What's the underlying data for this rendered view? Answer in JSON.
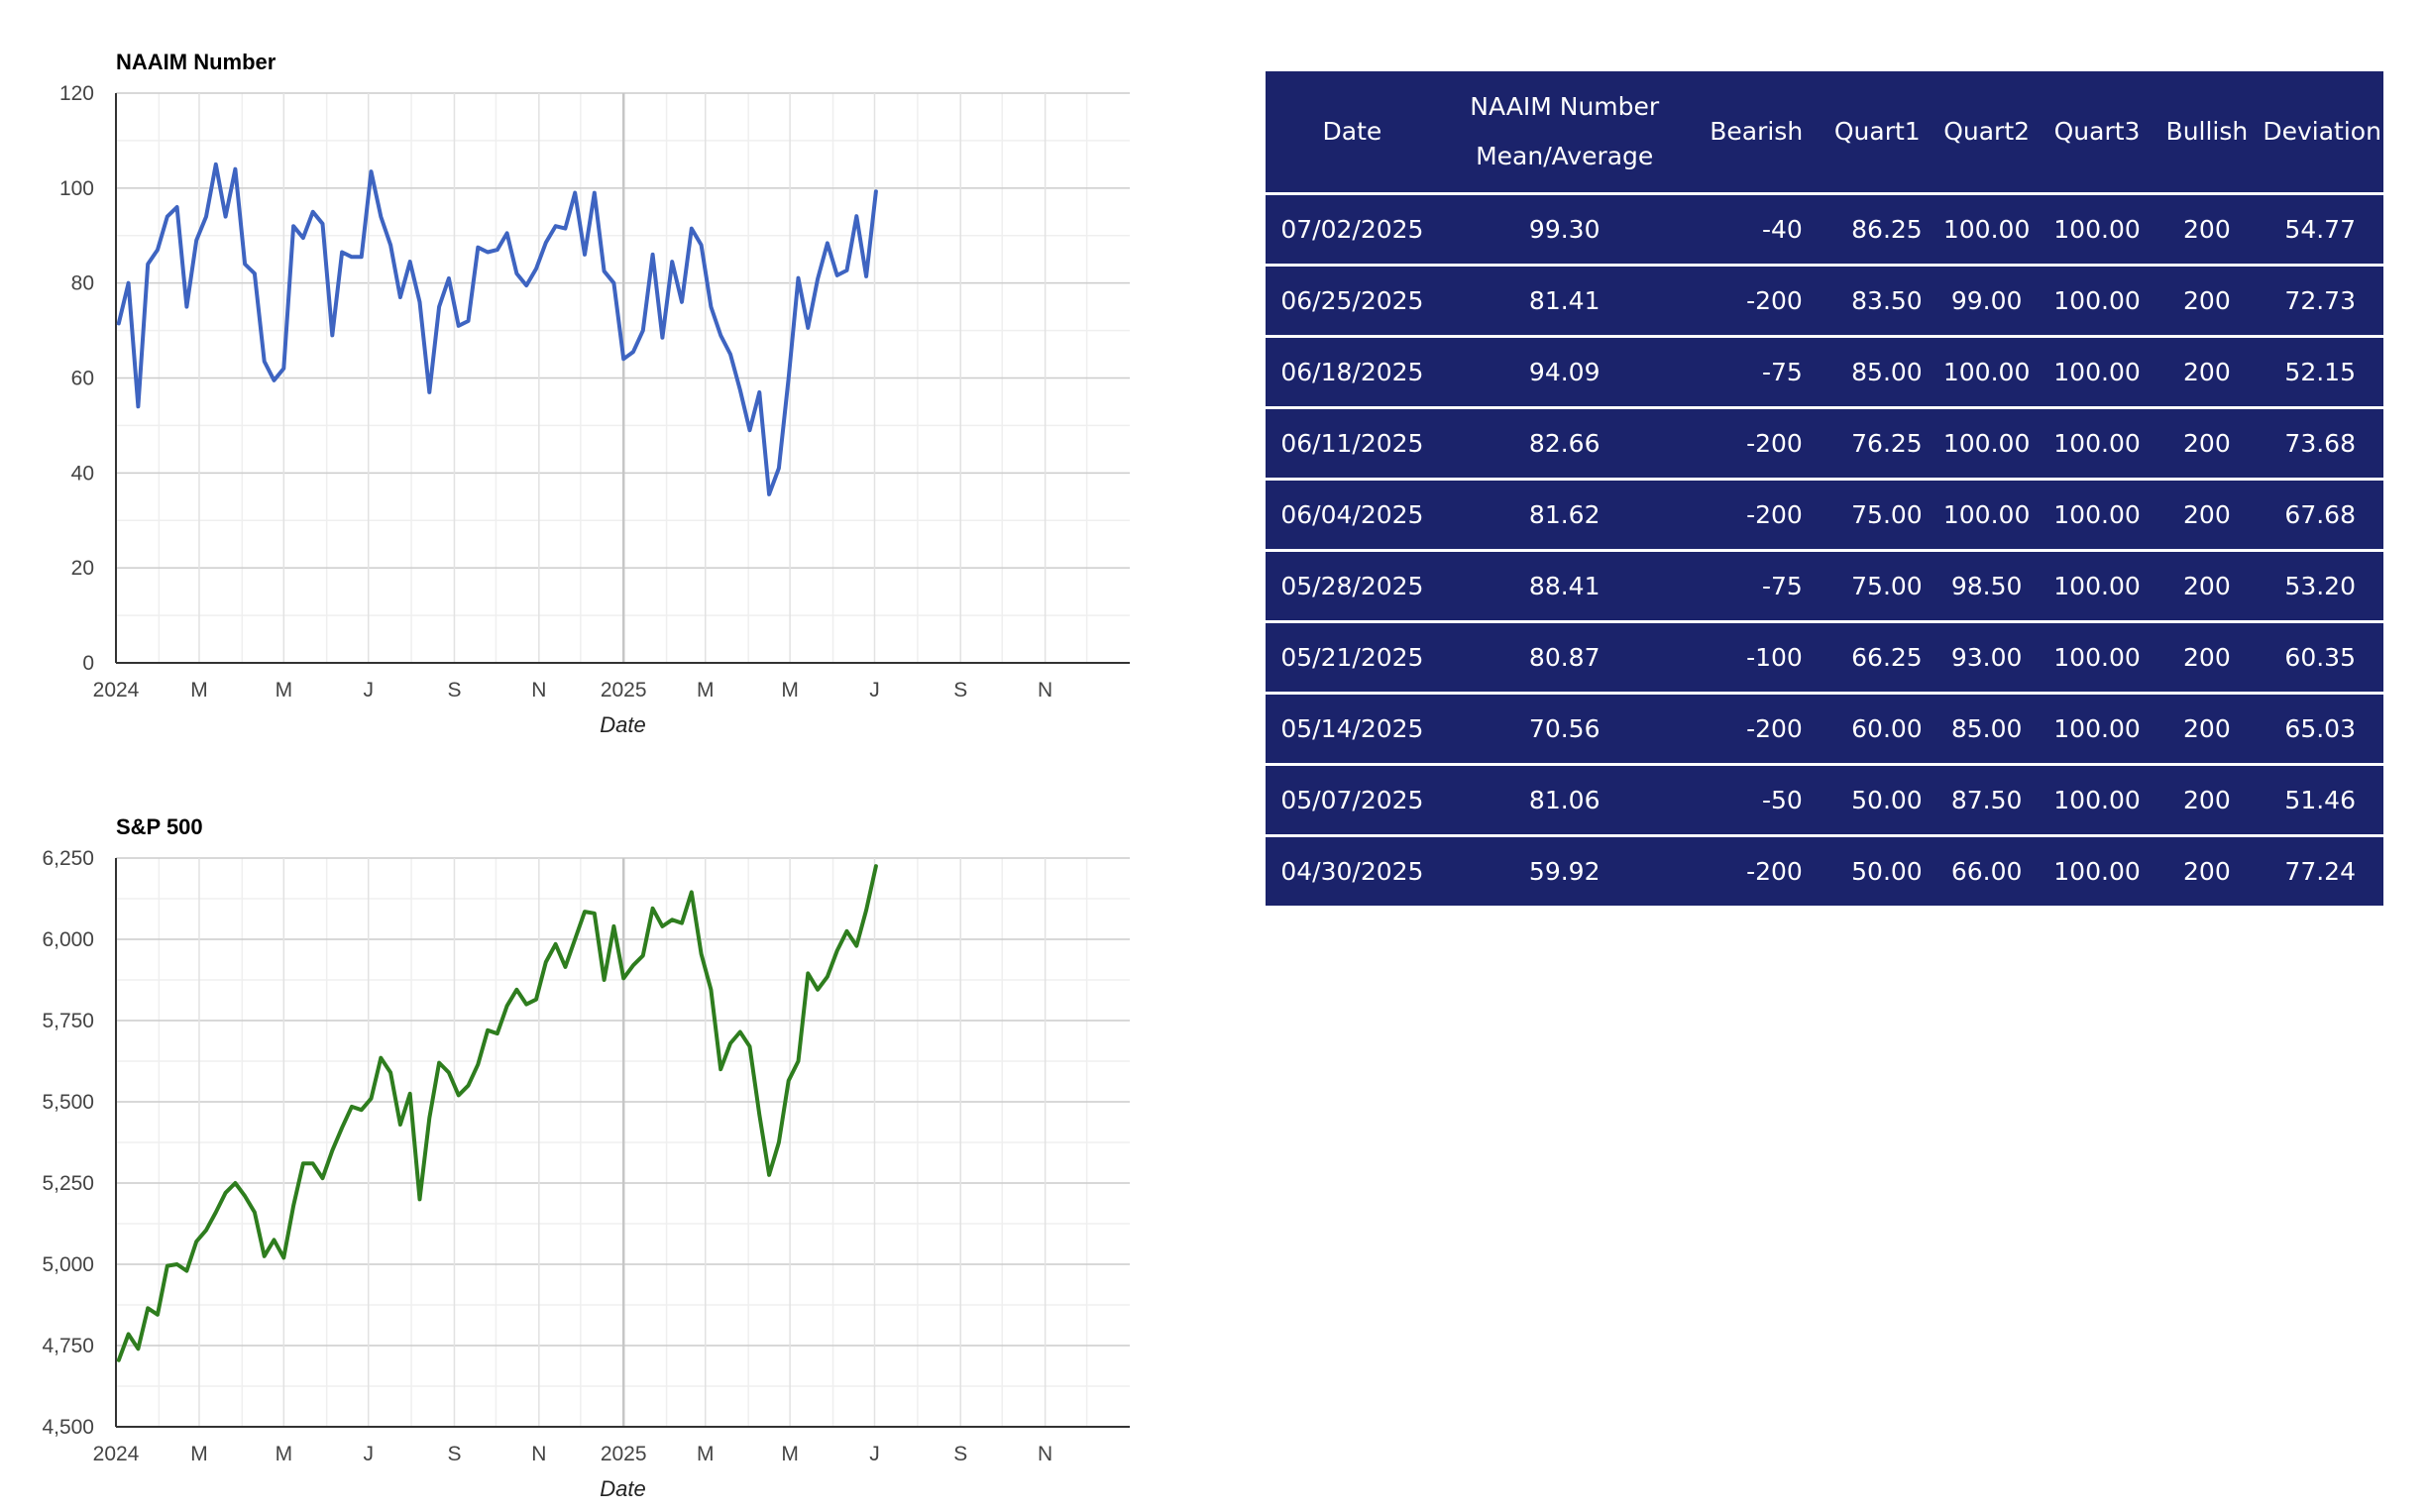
{
  "chart_data": [
    {
      "type": "line",
      "title": "NAAIM Number",
      "xlabel": "Date",
      "ylabel": "",
      "ylim": [
        0,
        120
      ],
      "yticks": [
        0,
        20,
        40,
        60,
        80,
        100,
        120
      ],
      "xlim": [
        "2024-01-01",
        "2026-01-01"
      ],
      "xticks": [
        {
          "date": "2024-01-01",
          "label": "2024"
        },
        {
          "date": "2024-03-01",
          "label": "M"
        },
        {
          "date": "2024-05-01",
          "label": "M"
        },
        {
          "date": "2024-07-01",
          "label": "J"
        },
        {
          "date": "2024-09-01",
          "label": "S"
        },
        {
          "date": "2024-11-01",
          "label": "N"
        },
        {
          "date": "2025-01-01",
          "label": "2025"
        },
        {
          "date": "2025-03-01",
          "label": "M"
        },
        {
          "date": "2025-05-01",
          "label": "M"
        },
        {
          "date": "2025-07-01",
          "label": "J"
        },
        {
          "date": "2025-09-01",
          "label": "S"
        },
        {
          "date": "2025-11-01",
          "label": "N"
        }
      ],
      "grid": true,
      "series": [
        {
          "color": "#3e64c1",
          "x": [
            "2024-01-03",
            "2024-01-10",
            "2024-01-17",
            "2024-01-24",
            "2024-01-31",
            "2024-02-07",
            "2024-02-14",
            "2024-02-21",
            "2024-02-28",
            "2024-03-06",
            "2024-03-13",
            "2024-03-20",
            "2024-03-27",
            "2024-04-03",
            "2024-04-10",
            "2024-04-17",
            "2024-04-24",
            "2024-05-01",
            "2024-05-08",
            "2024-05-15",
            "2024-05-22",
            "2024-05-29",
            "2024-06-05",
            "2024-06-12",
            "2024-06-19",
            "2024-06-26",
            "2024-07-03",
            "2024-07-10",
            "2024-07-17",
            "2024-07-24",
            "2024-07-31",
            "2024-08-07",
            "2024-08-14",
            "2024-08-21",
            "2024-08-28",
            "2024-09-04",
            "2024-09-11",
            "2024-09-18",
            "2024-09-25",
            "2024-10-02",
            "2024-10-09",
            "2024-10-16",
            "2024-10-23",
            "2024-10-30",
            "2024-11-06",
            "2024-11-13",
            "2024-11-20",
            "2024-11-27",
            "2024-12-04",
            "2024-12-11",
            "2024-12-18",
            "2024-12-25",
            "2025-01-01",
            "2025-01-08",
            "2025-01-15",
            "2025-01-22",
            "2025-01-29",
            "2025-02-05",
            "2025-02-12",
            "2025-02-19",
            "2025-02-26",
            "2025-03-05",
            "2025-03-12",
            "2025-03-19",
            "2025-03-26",
            "2025-04-02",
            "2025-04-09",
            "2025-04-16",
            "2025-04-23",
            "2025-04-30",
            "2025-05-07",
            "2025-05-14",
            "2025-05-21",
            "2025-05-28",
            "2025-06-04",
            "2025-06-11",
            "2025-06-18",
            "2025-06-25",
            "2025-07-02"
          ],
          "values": [
            71.5,
            80,
            54,
            84,
            87,
            94,
            96,
            75,
            89,
            94,
            105,
            94,
            104,
            84,
            82,
            63.5,
            59.5,
            62,
            92,
            89.5,
            95,
            92.5,
            69,
            86.5,
            85.5,
            85.5,
            103.5,
            94,
            88,
            77,
            84.5,
            76,
            57,
            75,
            81,
            71,
            72,
            87.5,
            86.5,
            87,
            90.5,
            82,
            79.5,
            83,
            88.5,
            92,
            91.5,
            99,
            86,
            99,
            82.5,
            80,
            64,
            65.5,
            70,
            86,
            68.5,
            84.5,
            76,
            91.5,
            88,
            75,
            69,
            65,
            57.5,
            49,
            57,
            35.5,
            41,
            59.92,
            81.06,
            70.56,
            80.87,
            88.41,
            81.62,
            82.66,
            94.09,
            81.41,
            99.3
          ]
        }
      ]
    },
    {
      "type": "line",
      "title": "S&P 500",
      "xlabel": "Date",
      "ylabel": "",
      "ylim": [
        4500,
        6250
      ],
      "yticks": [
        4500,
        4750,
        5000,
        5250,
        5500,
        5750,
        6000,
        6250
      ],
      "ytick_labels": [
        "4,500",
        "4,750",
        "5,000",
        "5,250",
        "5,500",
        "5,750",
        "6,000",
        "6,250"
      ],
      "xlim": [
        "2024-01-01",
        "2026-01-01"
      ],
      "xticks": [
        {
          "date": "2024-01-01",
          "label": "2024"
        },
        {
          "date": "2024-03-01",
          "label": "M"
        },
        {
          "date": "2024-05-01",
          "label": "M"
        },
        {
          "date": "2024-07-01",
          "label": "J"
        },
        {
          "date": "2024-09-01",
          "label": "S"
        },
        {
          "date": "2024-11-01",
          "label": "N"
        },
        {
          "date": "2025-01-01",
          "label": "2025"
        },
        {
          "date": "2025-03-01",
          "label": "M"
        },
        {
          "date": "2025-05-01",
          "label": "M"
        },
        {
          "date": "2025-07-01",
          "label": "J"
        },
        {
          "date": "2025-09-01",
          "label": "S"
        },
        {
          "date": "2025-11-01",
          "label": "N"
        }
      ],
      "grid": true,
      "series": [
        {
          "color": "#2e7d1e",
          "x": [
            "2024-01-03",
            "2024-01-10",
            "2024-01-17",
            "2024-01-24",
            "2024-01-31",
            "2024-02-07",
            "2024-02-14",
            "2024-02-21",
            "2024-02-28",
            "2024-03-06",
            "2024-03-13",
            "2024-03-20",
            "2024-03-27",
            "2024-04-03",
            "2024-04-10",
            "2024-04-17",
            "2024-04-24",
            "2024-05-01",
            "2024-05-08",
            "2024-05-15",
            "2024-05-22",
            "2024-05-29",
            "2024-06-05",
            "2024-06-12",
            "2024-06-19",
            "2024-06-26",
            "2024-07-03",
            "2024-07-10",
            "2024-07-17",
            "2024-07-24",
            "2024-07-31",
            "2024-08-07",
            "2024-08-14",
            "2024-08-21",
            "2024-08-28",
            "2024-09-04",
            "2024-09-11",
            "2024-09-18",
            "2024-09-25",
            "2024-10-02",
            "2024-10-09",
            "2024-10-16",
            "2024-10-23",
            "2024-10-30",
            "2024-11-06",
            "2024-11-13",
            "2024-11-20",
            "2024-11-27",
            "2024-12-04",
            "2024-12-11",
            "2024-12-18",
            "2024-12-25",
            "2025-01-01",
            "2025-01-08",
            "2025-01-15",
            "2025-01-22",
            "2025-01-29",
            "2025-02-05",
            "2025-02-12",
            "2025-02-19",
            "2025-02-26",
            "2025-03-05",
            "2025-03-12",
            "2025-03-19",
            "2025-03-26",
            "2025-04-02",
            "2025-04-09",
            "2025-04-16",
            "2025-04-23",
            "2025-04-30",
            "2025-05-07",
            "2025-05-14",
            "2025-05-21",
            "2025-05-28",
            "2025-06-04",
            "2025-06-11",
            "2025-06-18",
            "2025-06-25",
            "2025-07-02"
          ],
          "values": [
            4705,
            4785,
            4740,
            4865,
            4845,
            4995,
            5000,
            4980,
            5070,
            5105,
            5160,
            5220,
            5250,
            5210,
            5160,
            5025,
            5075,
            5020,
            5180,
            5310,
            5310,
            5265,
            5350,
            5420,
            5485,
            5475,
            5510,
            5635,
            5590,
            5430,
            5525,
            5200,
            5450,
            5620,
            5590,
            5520,
            5550,
            5615,
            5720,
            5710,
            5795,
            5845,
            5800,
            5815,
            5930,
            5985,
            5915,
            6000,
            6085,
            6080,
            5875,
            6040,
            5880,
            5920,
            5950,
            6095,
            6040,
            6060,
            6050,
            6145,
            5955,
            5845,
            5600,
            5680,
            5715,
            5670,
            5460,
            5275,
            5375,
            5565,
            5625,
            5895,
            5845,
            5885,
            5965,
            6025,
            5980,
            6090,
            6225
          ]
        }
      ]
    }
  ],
  "table": {
    "headers": [
      {
        "lines": [
          "Date"
        ]
      },
      {
        "lines": [
          "NAAIM Number",
          "Mean/Average"
        ]
      },
      {
        "lines": [
          "Bearish"
        ]
      },
      {
        "lines": [
          "Quart1"
        ]
      },
      {
        "lines": [
          "Quart2"
        ]
      },
      {
        "lines": [
          "Quart3"
        ]
      },
      {
        "lines": [
          "Bullish"
        ]
      },
      {
        "lines": [
          "Deviation"
        ]
      }
    ],
    "rows": [
      [
        "07/02/2025",
        "99.30",
        "-40",
        "86.25",
        "100.00",
        "100.00",
        "200",
        "54.77"
      ],
      [
        "06/25/2025",
        "81.41",
        "-200",
        "83.50",
        "99.00",
        "100.00",
        "200",
        "72.73"
      ],
      [
        "06/18/2025",
        "94.09",
        "-75",
        "85.00",
        "100.00",
        "100.00",
        "200",
        "52.15"
      ],
      [
        "06/11/2025",
        "82.66",
        "-200",
        "76.25",
        "100.00",
        "100.00",
        "200",
        "73.68"
      ],
      [
        "06/04/2025",
        "81.62",
        "-200",
        "75.00",
        "100.00",
        "100.00",
        "200",
        "67.68"
      ],
      [
        "05/28/2025",
        "88.41",
        "-75",
        "75.00",
        "98.50",
        "100.00",
        "200",
        "53.20"
      ],
      [
        "05/21/2025",
        "80.87",
        "-100",
        "66.25",
        "93.00",
        "100.00",
        "200",
        "60.35"
      ],
      [
        "05/14/2025",
        "70.56",
        "-200",
        "60.00",
        "85.00",
        "100.00",
        "200",
        "65.03"
      ],
      [
        "05/07/2025",
        "81.06",
        "-50",
        "50.00",
        "87.50",
        "100.00",
        "200",
        "51.46"
      ],
      [
        "04/30/2025",
        "59.92",
        "-200",
        "50.00",
        "66.00",
        "100.00",
        "200",
        "77.24"
      ]
    ]
  }
}
